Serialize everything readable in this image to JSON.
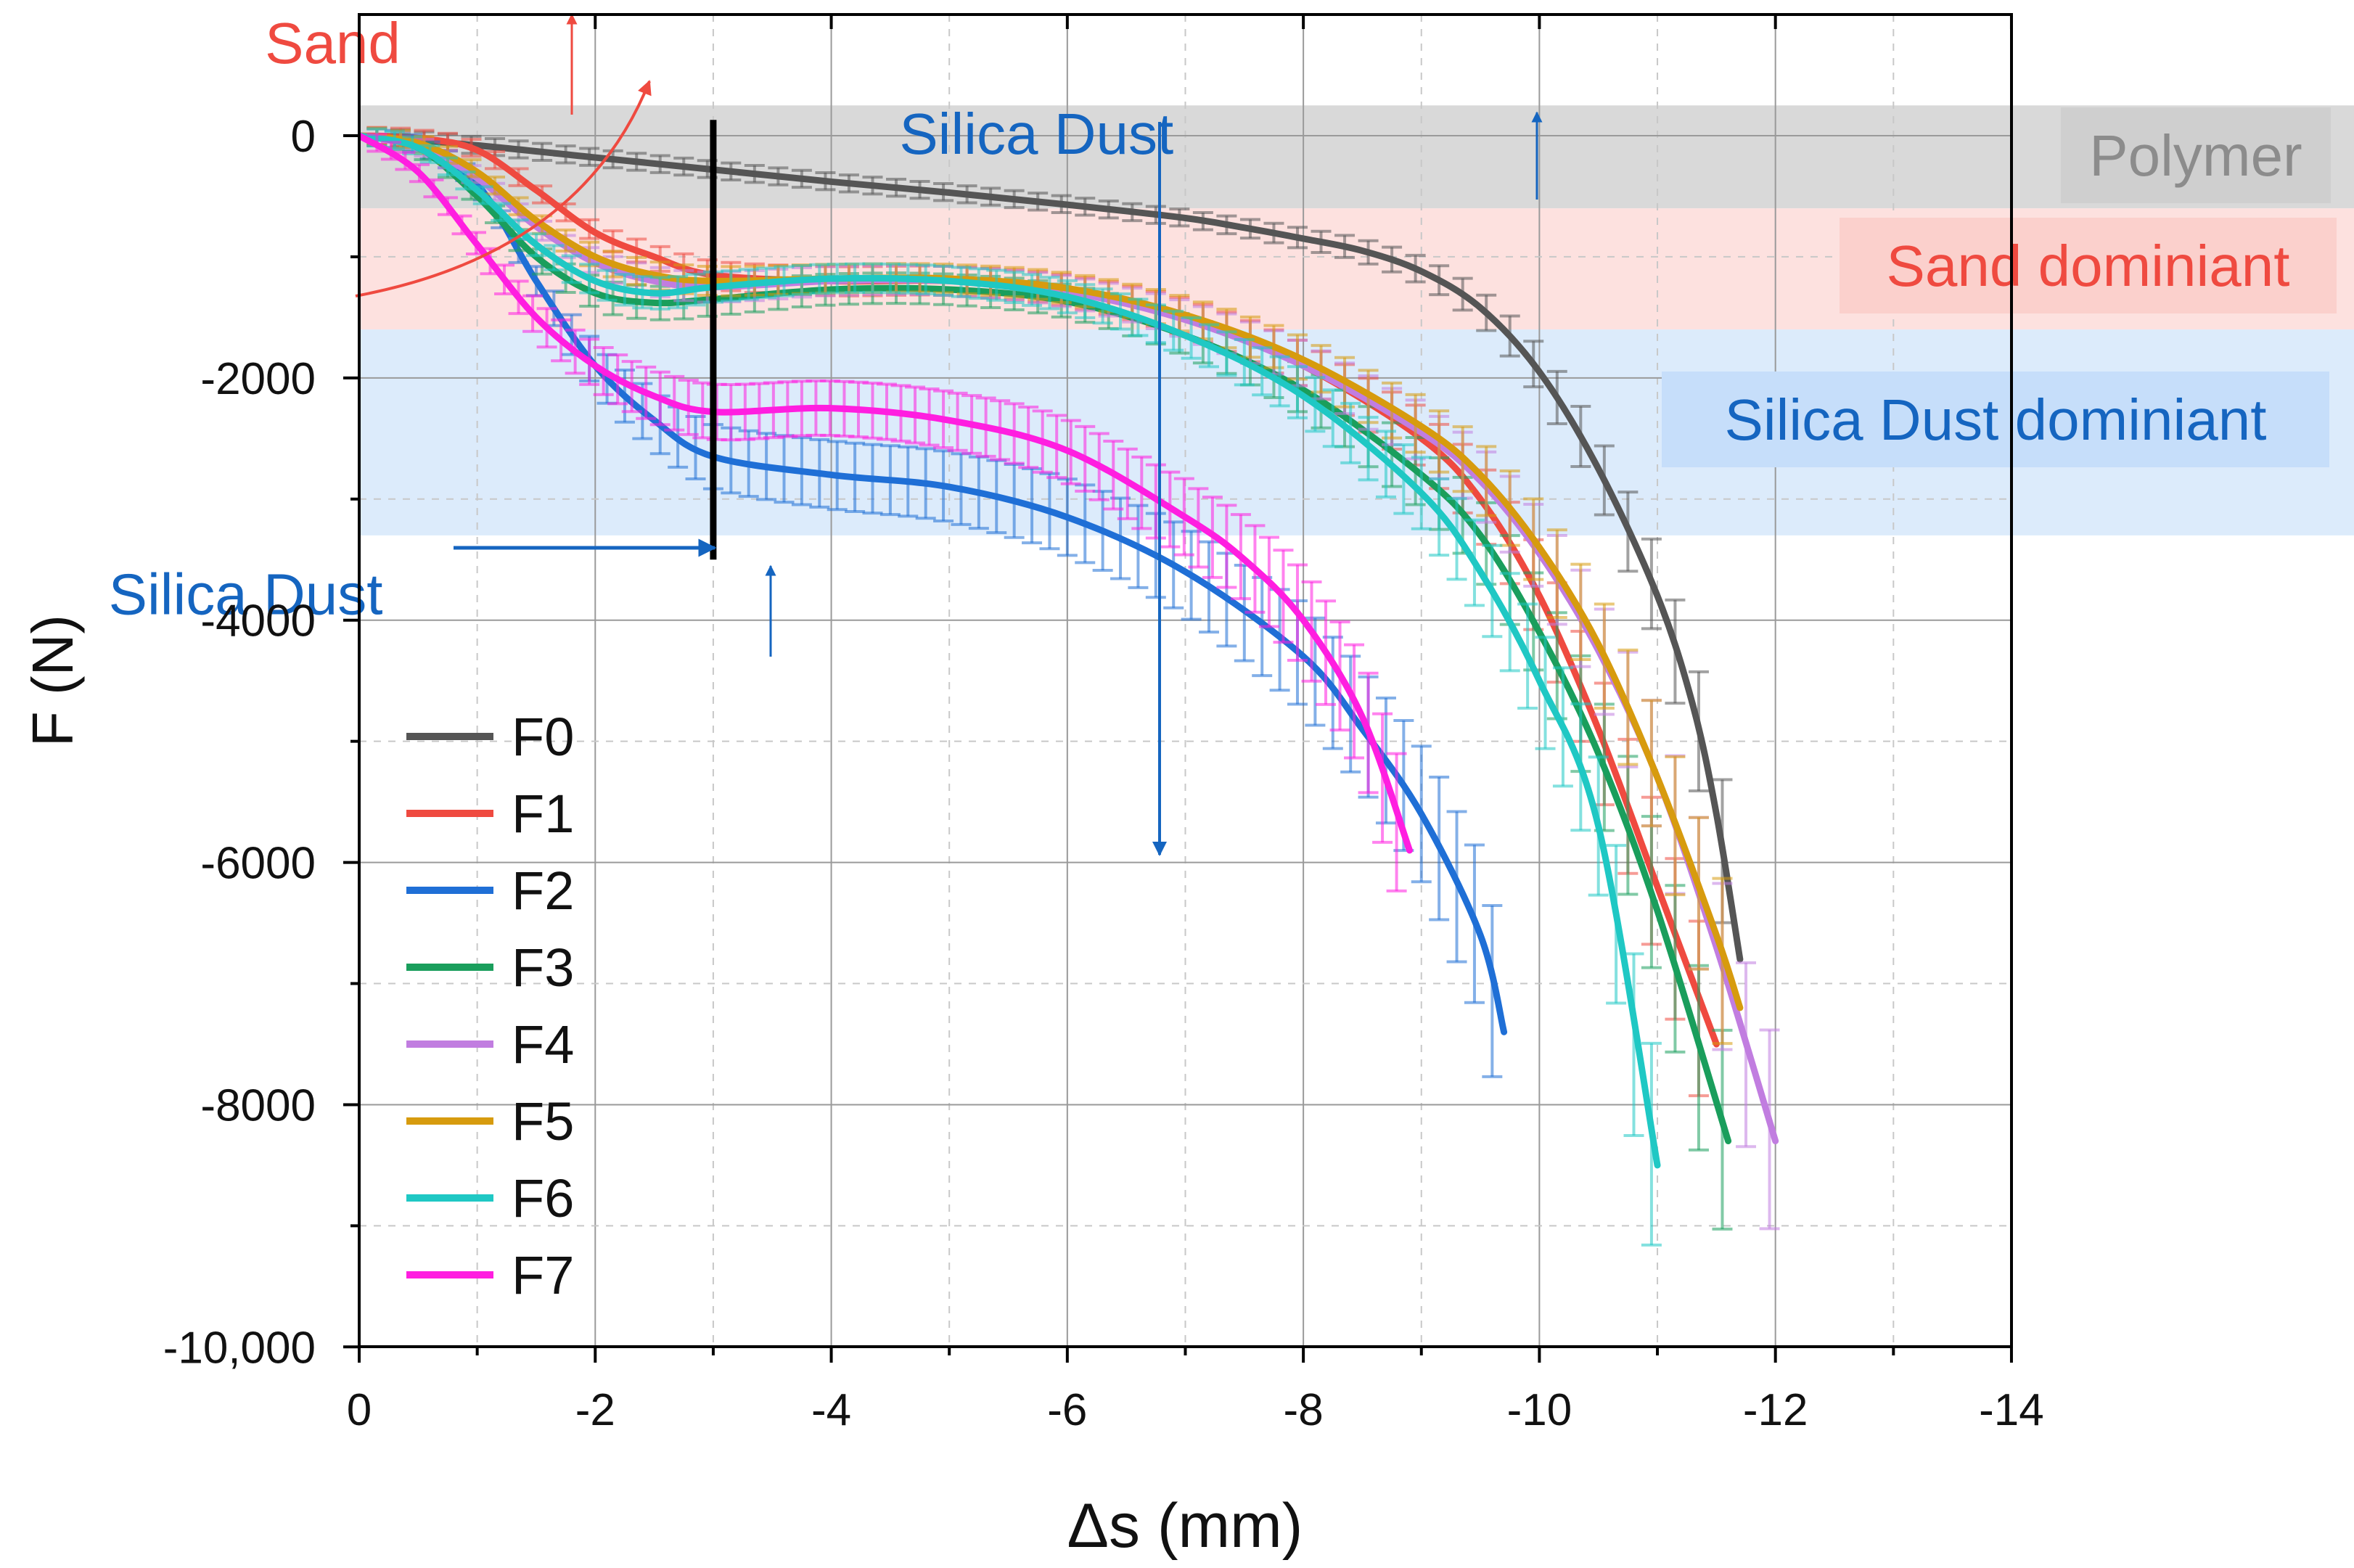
{
  "chart_data": {
    "type": "line",
    "title": "",
    "xlabel": "Δs (mm)",
    "ylabel": "F (N)",
    "xlim": [
      0,
      -14
    ],
    "ylim": [
      -10000,
      1000
    ],
    "xticks": [
      0,
      -2,
      -4,
      -6,
      -8,
      -10,
      -12,
      -14
    ],
    "xtick_labels": [
      "0",
      "-2",
      "-4",
      "-6",
      "-8",
      "-10",
      "-12",
      "-14"
    ],
    "yticks": [
      0,
      -2000,
      -4000,
      -6000,
      -8000,
      -10000
    ],
    "ytick_labels": [
      "0",
      "-2000",
      "-4000",
      "-6000",
      "-8000",
      "-10,000"
    ],
    "grid": true,
    "legend_position": "bottom-left",
    "bands": [
      {
        "label": "Polymer",
        "y_from": -600,
        "y_to": 250,
        "fill": "#d9d9d9",
        "label_bg": "#cfcfcf",
        "label_color": "#8c8c8c"
      },
      {
        "label": "Sand dominiant",
        "y_from": -1600,
        "y_to": -600,
        "fill": "#fde1df",
        "label_bg": "#fbd0cc",
        "label_color": "#ef4a40"
      },
      {
        "label": "Silica Dust dominiant",
        "y_from": -3300,
        "y_to": -1600,
        "fill": "#dcebfb",
        "label_bg": "#c6defa",
        "label_color": "#1565c0"
      }
    ],
    "annotations": [
      {
        "text": "Sand",
        "color": "#ef4a40",
        "x": -0.35,
        "y": 600
      },
      {
        "text": "Silica Dust",
        "color": "#1565c0",
        "x": -6.9,
        "y": -150
      },
      {
        "text": "Silica Dust",
        "color": "#1565c0",
        "x": -0.2,
        "y": -3950
      }
    ],
    "vertical_marker": {
      "x": -3.0,
      "y_from": -3500,
      "y_to": 130,
      "color": "#000000"
    },
    "series": [
      {
        "name": "F0",
        "color": "#555555",
        "err_step": 0.2,
        "points": [
          [
            0,
            0
          ],
          [
            -1,
            -80
          ],
          [
            -2,
            -180
          ],
          [
            -3,
            -280
          ],
          [
            -4,
            -380
          ],
          [
            -5,
            -470
          ],
          [
            -6,
            -570
          ],
          [
            -7,
            -680
          ],
          [
            -7.5,
            -760
          ],
          [
            -8,
            -850
          ],
          [
            -8.5,
            -950
          ],
          [
            -9,
            -1120
          ],
          [
            -9.5,
            -1420
          ],
          [
            -10,
            -1950
          ],
          [
            -10.5,
            -2750
          ],
          [
            -11,
            -3800
          ],
          [
            -11.3,
            -4700
          ],
          [
            -11.5,
            -5600
          ],
          [
            -11.7,
            -6800
          ]
        ]
      },
      {
        "name": "F1",
        "color": "#ef4a40",
        "err_step": 0.2,
        "points": [
          [
            0,
            0
          ],
          [
            -0.5,
            -20
          ],
          [
            -1,
            -120
          ],
          [
            -1.5,
            -450
          ],
          [
            -2,
            -800
          ],
          [
            -2.5,
            -1000
          ],
          [
            -3,
            -1150
          ],
          [
            -4,
            -1200
          ],
          [
            -5,
            -1200
          ],
          [
            -6,
            -1280
          ],
          [
            -7,
            -1500
          ],
          [
            -8,
            -1900
          ],
          [
            -9,
            -2500
          ],
          [
            -9.5,
            -3000
          ],
          [
            -10,
            -3800
          ],
          [
            -10.5,
            -4900
          ],
          [
            -11,
            -6200
          ],
          [
            -11.5,
            -7500
          ]
        ]
      },
      {
        "name": "F2",
        "color": "#1f6fd6",
        "err_step": 0.15,
        "points": [
          [
            0,
            0
          ],
          [
            -0.5,
            -80
          ],
          [
            -1,
            -400
          ],
          [
            -1.5,
            -1200
          ],
          [
            -2,
            -1900
          ],
          [
            -2.5,
            -2350
          ],
          [
            -3,
            -2650
          ],
          [
            -4,
            -2800
          ],
          [
            -5,
            -2900
          ],
          [
            -6,
            -3150
          ],
          [
            -7,
            -3600
          ],
          [
            -8,
            -4300
          ],
          [
            -8.5,
            -4900
          ],
          [
            -9,
            -5600
          ],
          [
            -9.5,
            -6600
          ],
          [
            -9.7,
            -7400
          ]
        ]
      },
      {
        "name": "F3",
        "color": "#1a9e5c",
        "err_step": 0.2,
        "points": [
          [
            0,
            0
          ],
          [
            -0.5,
            -100
          ],
          [
            -1,
            -500
          ],
          [
            -1.5,
            -1000
          ],
          [
            -2,
            -1300
          ],
          [
            -2.5,
            -1380
          ],
          [
            -3,
            -1350
          ],
          [
            -4,
            -1270
          ],
          [
            -5,
            -1270
          ],
          [
            -6,
            -1370
          ],
          [
            -7,
            -1650
          ],
          [
            -8,
            -2100
          ],
          [
            -9,
            -2800
          ],
          [
            -9.5,
            -3300
          ],
          [
            -10,
            -4100
          ],
          [
            -10.5,
            -5100
          ],
          [
            -11,
            -6400
          ],
          [
            -11.6,
            -8300
          ]
        ]
      },
      {
        "name": "F4",
        "color": "#c17de0",
        "err_step": 0.2,
        "points": [
          [
            0,
            0
          ],
          [
            -0.5,
            -80
          ],
          [
            -1,
            -350
          ],
          [
            -1.5,
            -750
          ],
          [
            -2,
            -1050
          ],
          [
            -2.5,
            -1200
          ],
          [
            -3,
            -1250
          ],
          [
            -4,
            -1200
          ],
          [
            -5,
            -1200
          ],
          [
            -6,
            -1290
          ],
          [
            -7,
            -1520
          ],
          [
            -8,
            -1900
          ],
          [
            -9,
            -2450
          ],
          [
            -9.5,
            -2850
          ],
          [
            -10,
            -3450
          ],
          [
            -10.5,
            -4250
          ],
          [
            -11,
            -5300
          ],
          [
            -11.5,
            -6700
          ],
          [
            -12,
            -8300
          ]
        ]
      },
      {
        "name": "F5",
        "color": "#d79b0e",
        "err_step": 0.2,
        "points": [
          [
            0,
            0
          ],
          [
            -0.5,
            -60
          ],
          [
            -1,
            -300
          ],
          [
            -1.5,
            -700
          ],
          [
            -2,
            -1000
          ],
          [
            -2.5,
            -1150
          ],
          [
            -3,
            -1200
          ],
          [
            -4,
            -1180
          ],
          [
            -5,
            -1180
          ],
          [
            -6,
            -1260
          ],
          [
            -7,
            -1480
          ],
          [
            -8,
            -1850
          ],
          [
            -9,
            -2400
          ],
          [
            -9.5,
            -2800
          ],
          [
            -10,
            -3400
          ],
          [
            -10.5,
            -4200
          ],
          [
            -11,
            -5300
          ],
          [
            -11.5,
            -6600
          ],
          [
            -11.7,
            -7200
          ]
        ]
      },
      {
        "name": "F6",
        "color": "#1fc8c4",
        "err_step": 0.15,
        "points": [
          [
            0,
            0
          ],
          [
            -0.5,
            -100
          ],
          [
            -1,
            -450
          ],
          [
            -1.5,
            -900
          ],
          [
            -2,
            -1200
          ],
          [
            -2.5,
            -1300
          ],
          [
            -3,
            -1250
          ],
          [
            -4,
            -1180
          ],
          [
            -5,
            -1200
          ],
          [
            -6,
            -1330
          ],
          [
            -7,
            -1650
          ],
          [
            -8,
            -2150
          ],
          [
            -9,
            -2950
          ],
          [
            -9.5,
            -3600
          ],
          [
            -10,
            -4500
          ],
          [
            -10.5,
            -5700
          ],
          [
            -11,
            -8500
          ]
        ]
      },
      {
        "name": "F7",
        "color": "#ff1ee0",
        "err_step": 0.12,
        "points": [
          [
            0,
            0
          ],
          [
            -0.5,
            -300
          ],
          [
            -1,
            -900
          ],
          [
            -1.5,
            -1500
          ],
          [
            -2,
            -1900
          ],
          [
            -2.5,
            -2150
          ],
          [
            -3,
            -2280
          ],
          [
            -4,
            -2250
          ],
          [
            -5,
            -2350
          ],
          [
            -6,
            -2600
          ],
          [
            -7,
            -3150
          ],
          [
            -7.5,
            -3500
          ],
          [
            -8,
            -4000
          ],
          [
            -8.5,
            -4800
          ],
          [
            -8.9,
            -5900
          ]
        ]
      }
    ]
  }
}
